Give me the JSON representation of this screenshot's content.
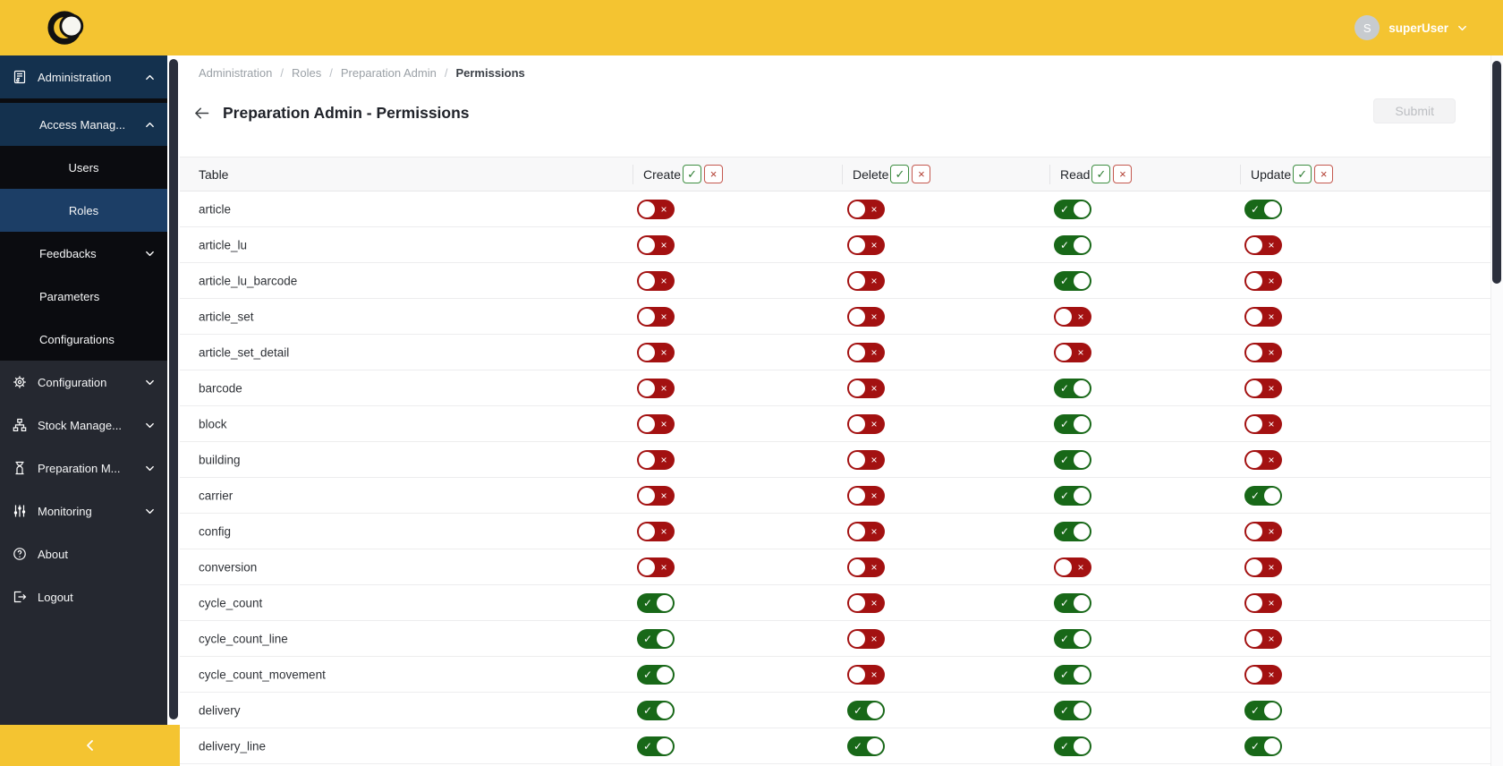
{
  "topbar": {
    "user_initial": "S",
    "user_name": "superUser"
  },
  "sidebar": {
    "items": [
      {
        "label": "Administration"
      },
      {
        "label": "Access Manag..."
      },
      {
        "label": "Users"
      },
      {
        "label": "Roles"
      },
      {
        "label": "Feedbacks"
      },
      {
        "label": "Parameters"
      },
      {
        "label": "Configurations"
      },
      {
        "label": "Configuration"
      },
      {
        "label": "Stock Manage..."
      },
      {
        "label": "Preparation M..."
      },
      {
        "label": "Monitoring"
      },
      {
        "label": "About"
      },
      {
        "label": "Logout"
      }
    ]
  },
  "breadcrumb": {
    "part1": "Administration",
    "part2": "Roles",
    "part3": "Preparation Admin",
    "current": "Permissions",
    "separator": "/"
  },
  "page": {
    "title": "Preparation Admin - Permissions",
    "submit": "Submit"
  },
  "table": {
    "name_header": "Table",
    "columns": [
      "Create",
      "Delete",
      "Read",
      "Update"
    ],
    "rows": [
      {
        "name": "article",
        "perms": [
          false,
          false,
          true,
          true
        ]
      },
      {
        "name": "article_lu",
        "perms": [
          false,
          false,
          true,
          false
        ]
      },
      {
        "name": "article_lu_barcode",
        "perms": [
          false,
          false,
          true,
          false
        ]
      },
      {
        "name": "article_set",
        "perms": [
          false,
          false,
          false,
          false
        ]
      },
      {
        "name": "article_set_detail",
        "perms": [
          false,
          false,
          false,
          false
        ]
      },
      {
        "name": "barcode",
        "perms": [
          false,
          false,
          true,
          false
        ]
      },
      {
        "name": "block",
        "perms": [
          false,
          false,
          true,
          false
        ]
      },
      {
        "name": "building",
        "perms": [
          false,
          false,
          true,
          false
        ]
      },
      {
        "name": "carrier",
        "perms": [
          false,
          false,
          true,
          true
        ]
      },
      {
        "name": "config",
        "perms": [
          false,
          false,
          true,
          false
        ]
      },
      {
        "name": "conversion",
        "perms": [
          false,
          false,
          false,
          false
        ]
      },
      {
        "name": "cycle_count",
        "perms": [
          true,
          false,
          true,
          false
        ]
      },
      {
        "name": "cycle_count_line",
        "perms": [
          true,
          false,
          true,
          false
        ]
      },
      {
        "name": "cycle_count_movement",
        "perms": [
          true,
          false,
          true,
          false
        ]
      },
      {
        "name": "delivery",
        "perms": [
          true,
          true,
          true,
          true
        ]
      },
      {
        "name": "delivery_line",
        "perms": [
          true,
          true,
          true,
          true
        ]
      }
    ]
  },
  "icons": {
    "check": "✓",
    "x": "×"
  },
  "colors": {
    "accent_yellow": "#F4C431",
    "toggle_on_green": "#186818",
    "toggle_off_red": "#A31111",
    "sidebar_navy": "#14314E",
    "sidebar_selected": "#1C3E66",
    "sidebar_charcoal": "#252830"
  }
}
